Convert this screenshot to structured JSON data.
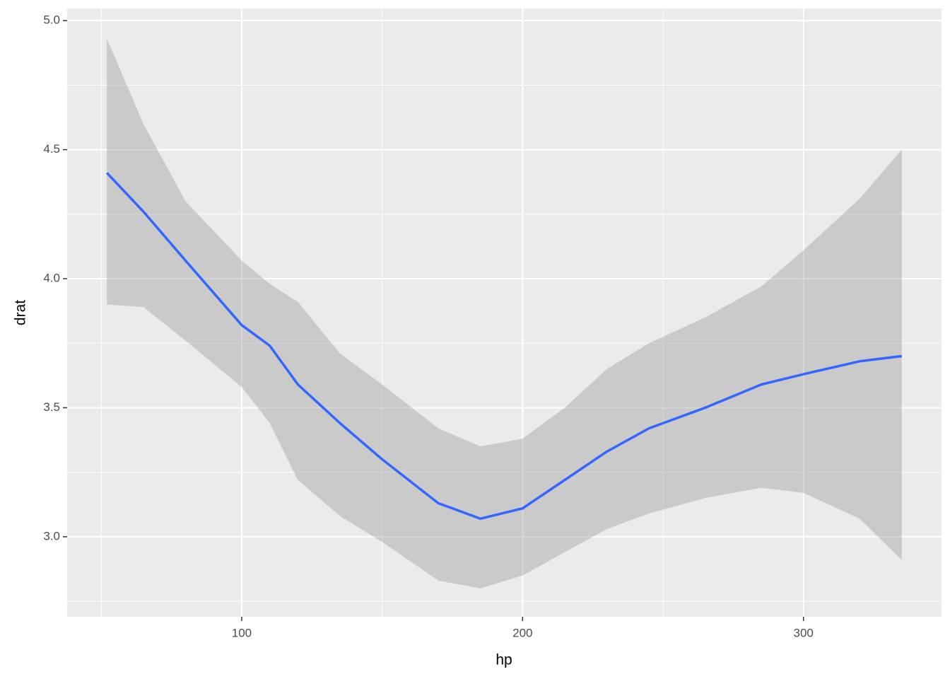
{
  "chart_data": {
    "type": "smooth",
    "x_label": "hp",
    "y_label": "drat",
    "x": [
      52,
      65,
      80,
      100,
      110,
      120,
      135,
      150,
      170,
      185,
      200,
      215,
      230,
      245,
      265,
      285,
      300,
      320,
      335
    ],
    "values": [
      4.41,
      4.26,
      4.07,
      3.82,
      3.74,
      3.59,
      3.44,
      3.3,
      3.13,
      3.07,
      3.11,
      3.22,
      3.33,
      3.42,
      3.5,
      3.59,
      3.63,
      3.68,
      3.7
    ],
    "band": {
      "lower": [
        3.9,
        3.89,
        3.76,
        3.58,
        3.44,
        3.22,
        3.08,
        2.98,
        2.83,
        2.8,
        2.85,
        2.94,
        3.03,
        3.09,
        3.15,
        3.19,
        3.17,
        3.07,
        2.91
      ],
      "upper": [
        4.93,
        4.6,
        4.3,
        4.07,
        3.98,
        3.91,
        3.71,
        3.59,
        3.42,
        3.35,
        3.38,
        3.5,
        3.65,
        3.75,
        3.85,
        3.97,
        4.11,
        4.31,
        4.5
      ]
    },
    "color": "#3366ff",
    "band_color": "#999999",
    "band_opacity": 0.4,
    "xlim": [
      37.85,
      349.15
    ],
    "ylim": [
      2.69,
      5.047
    ],
    "xticks": [
      100,
      200,
      300
    ],
    "yticks": [
      {
        "value": 3,
        "label": "3.0"
      },
      {
        "value": 3.5,
        "label": "3.5"
      },
      {
        "value": 4,
        "label": "4.0"
      },
      {
        "value": 4.5,
        "label": "4.5"
      },
      {
        "value": 5,
        "label": "5.0"
      }
    ],
    "xminor": [
      50,
      150,
      250
    ],
    "yminor": [
      2.75,
      3.25,
      3.75,
      4.25,
      4.75
    ],
    "grid": true
  }
}
